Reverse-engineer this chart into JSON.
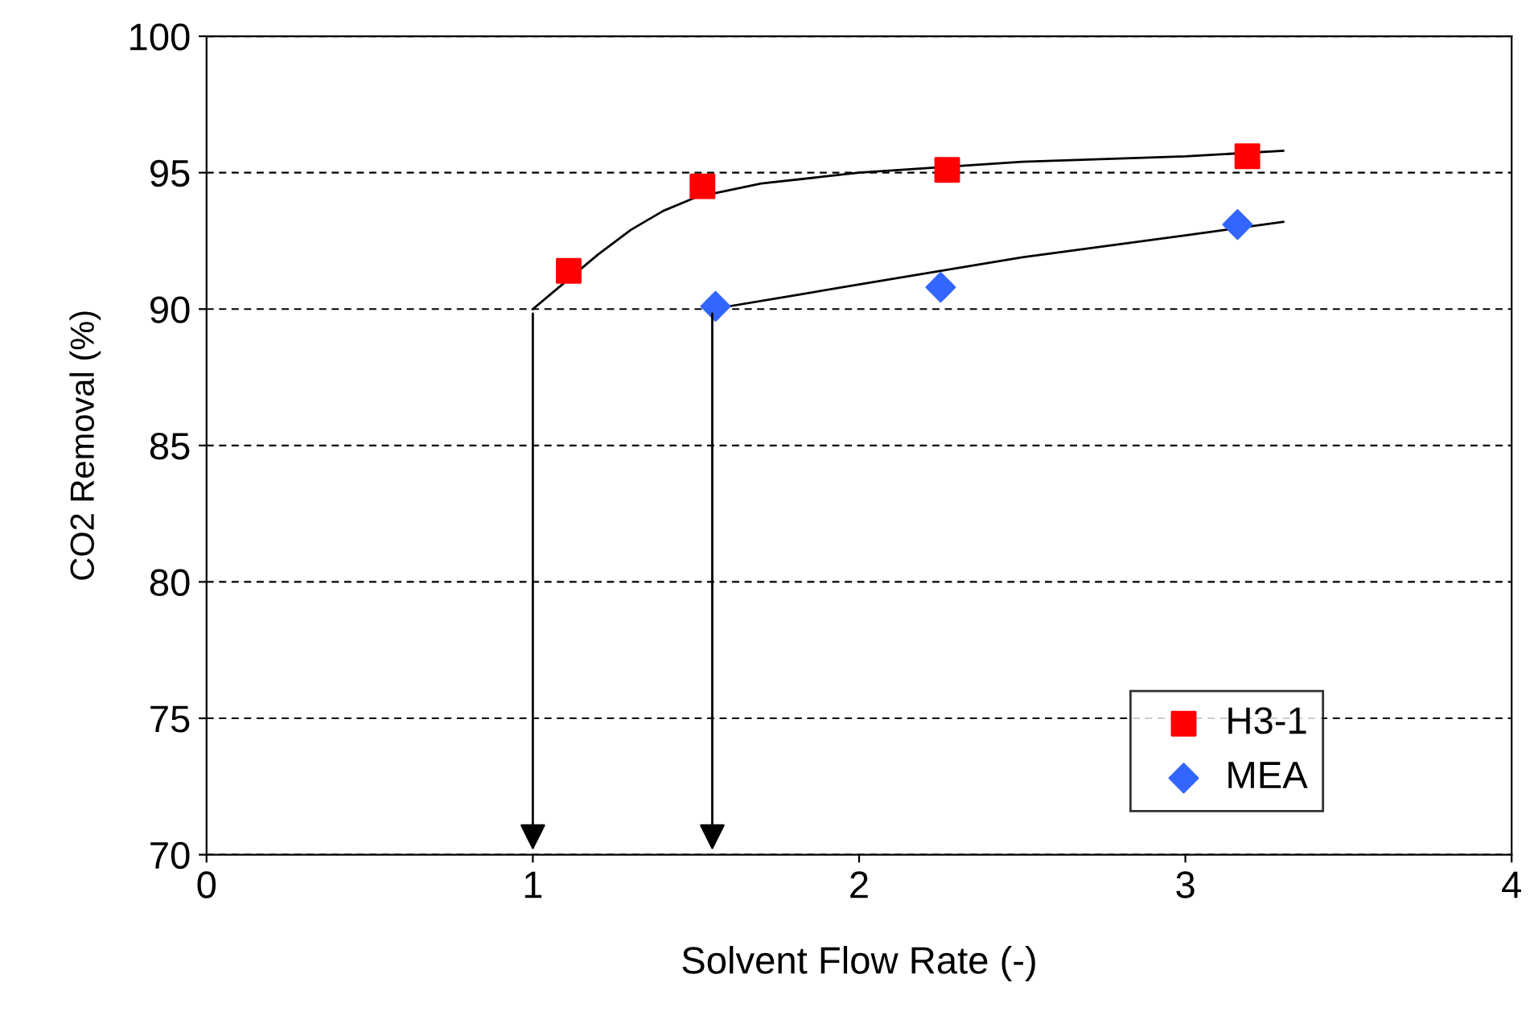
{
  "chart_data": {
    "type": "scatter",
    "xlabel": "Solvent Flow Rate (-)",
    "ylabel": "CO2 Removal (%)",
    "series": [
      {
        "name": "H3-1",
        "color": "#ff0000",
        "marker": "square",
        "x": [
          1.11,
          1.52,
          2.27,
          3.19
        ],
        "values": [
          91.4,
          94.5,
          95.1,
          95.6
        ]
      },
      {
        "name": "MEA",
        "color": "#3366ff",
        "marker": "diamond",
        "x": [
          1.56,
          2.25,
          3.16
        ],
        "values": [
          90.1,
          90.8,
          93.1
        ]
      },
      {
        "type": "line",
        "color": "#000000",
        "marker": "none",
        "x": [
          1.0,
          1.1,
          1.2,
          1.3,
          1.4,
          1.5,
          1.7,
          2.0,
          2.5,
          3.0,
          3.3
        ],
        "values": [
          90.0,
          91.0,
          92.0,
          92.9,
          93.6,
          94.1,
          94.6,
          95.0,
          95.4,
          95.6,
          95.8
        ]
      },
      {
        "type": "line",
        "color": "#000000",
        "marker": "none",
        "x": [
          1.55,
          1.8,
          2.0,
          2.5,
          3.0,
          3.3
        ],
        "values": [
          90.0,
          90.5,
          90.9,
          91.9,
          92.7,
          93.2
        ]
      }
    ],
    "xlim": [
      0,
      4
    ],
    "xticks": [
      0,
      1,
      2,
      3,
      4
    ],
    "ylim": [
      70,
      100
    ],
    "yticks": [
      70,
      75,
      80,
      85,
      90,
      95,
      100
    ],
    "grid": "y",
    "legend": "bottom right"
  }
}
